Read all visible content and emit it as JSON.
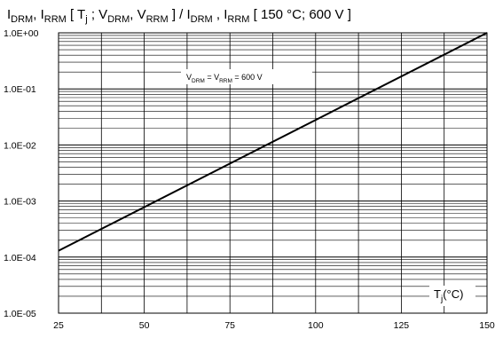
{
  "chart_data": {
    "type": "line",
    "title_parts": {
      "p1": "I",
      "s1": "DRM",
      "p2": ", I",
      "s2": "RRM",
      "p3": " [ T",
      "s3": "j",
      "p4": " ; V",
      "s4": "DRM",
      "p5": ", V",
      "s5": "RRM",
      "p6": " ] / I",
      "s6": "DRM",
      "p7": " , I",
      "s7": "RRM",
      "p8": " [ 150 °C; 600 V ]"
    },
    "annotation_parts": {
      "p1": "V",
      "s1": "DRM",
      "p2": " = V",
      "s2": "RRM",
      "p3": " = 600 V"
    },
    "xlabel_parts": {
      "p1": "T",
      "s1": "j",
      "p2": "(°C)"
    },
    "x_ticks": [
      "25",
      "50",
      "75",
      "100",
      "125",
      "150"
    ],
    "y_ticks": [
      "1.0E+00",
      "1.0E-01",
      "1.0E-02",
      "1.0E-03",
      "1.0E-04",
      "1.0E-05"
    ],
    "xlim": [
      25,
      150
    ],
    "ylim": [
      1e-05,
      1
    ],
    "y_scale": "log",
    "grid": true,
    "series": [
      {
        "x": [
          25,
          150
        ],
        "y": [
          0.00013,
          1.0
        ]
      }
    ]
  }
}
